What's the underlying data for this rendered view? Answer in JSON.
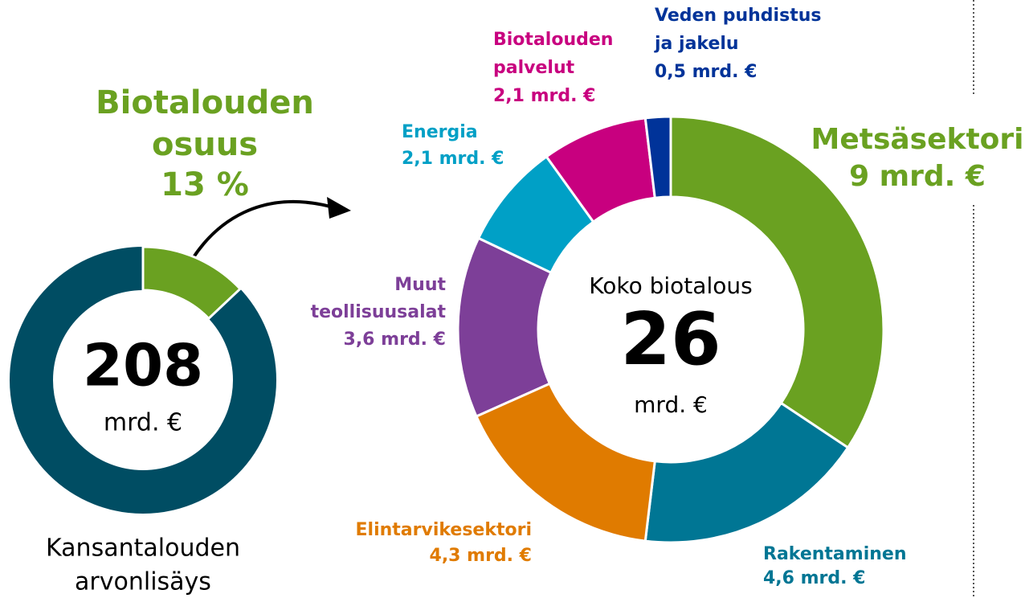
{
  "chart_data": [
    {
      "type": "donut",
      "title_lines": [
        "Biotalouden",
        "osuus"
      ],
      "values": [
        13
      ],
      "value_labels": [
        "13 %"
      ],
      "color": "#6aa121",
      "ring_color": "#004d63",
      "center_value": "208",
      "center_unit": "mrd. €",
      "caption_lines": [
        "Kansantalouden",
        "arvonlisäys"
      ]
    },
    {
      "type": "donut",
      "categories": [
        [
          "Metsäsektori"
        ],
        [
          "Rakentaminen"
        ],
        [
          "Elintarvikesektori"
        ],
        [
          "Muut",
          "teollisuusalat"
        ],
        [
          "Energia"
        ],
        [
          "Biotalouden",
          "palvelut"
        ],
        [
          "Veden puhdistus",
          "ja jakelu"
        ]
      ],
      "values": [
        9,
        4.6,
        4.3,
        3.6,
        2.1,
        2.1,
        0.5
      ],
      "value_labels": [
        "9 mrd. €",
        "4,6 mrd. €",
        "4,3 mrd. €",
        "3,6 mrd. €",
        "2,1 mrd. €",
        "2,1 mrd. €",
        "0,5 mrd. €"
      ],
      "colors": [
        "#6aa121",
        "#007694",
        "#e07b00",
        "#7d3f98",
        "#00a0c6",
        "#c8007f",
        "#003399"
      ],
      "center_title": "Koko biotalous",
      "center_value": "26",
      "center_unit": "mrd. €"
    }
  ]
}
